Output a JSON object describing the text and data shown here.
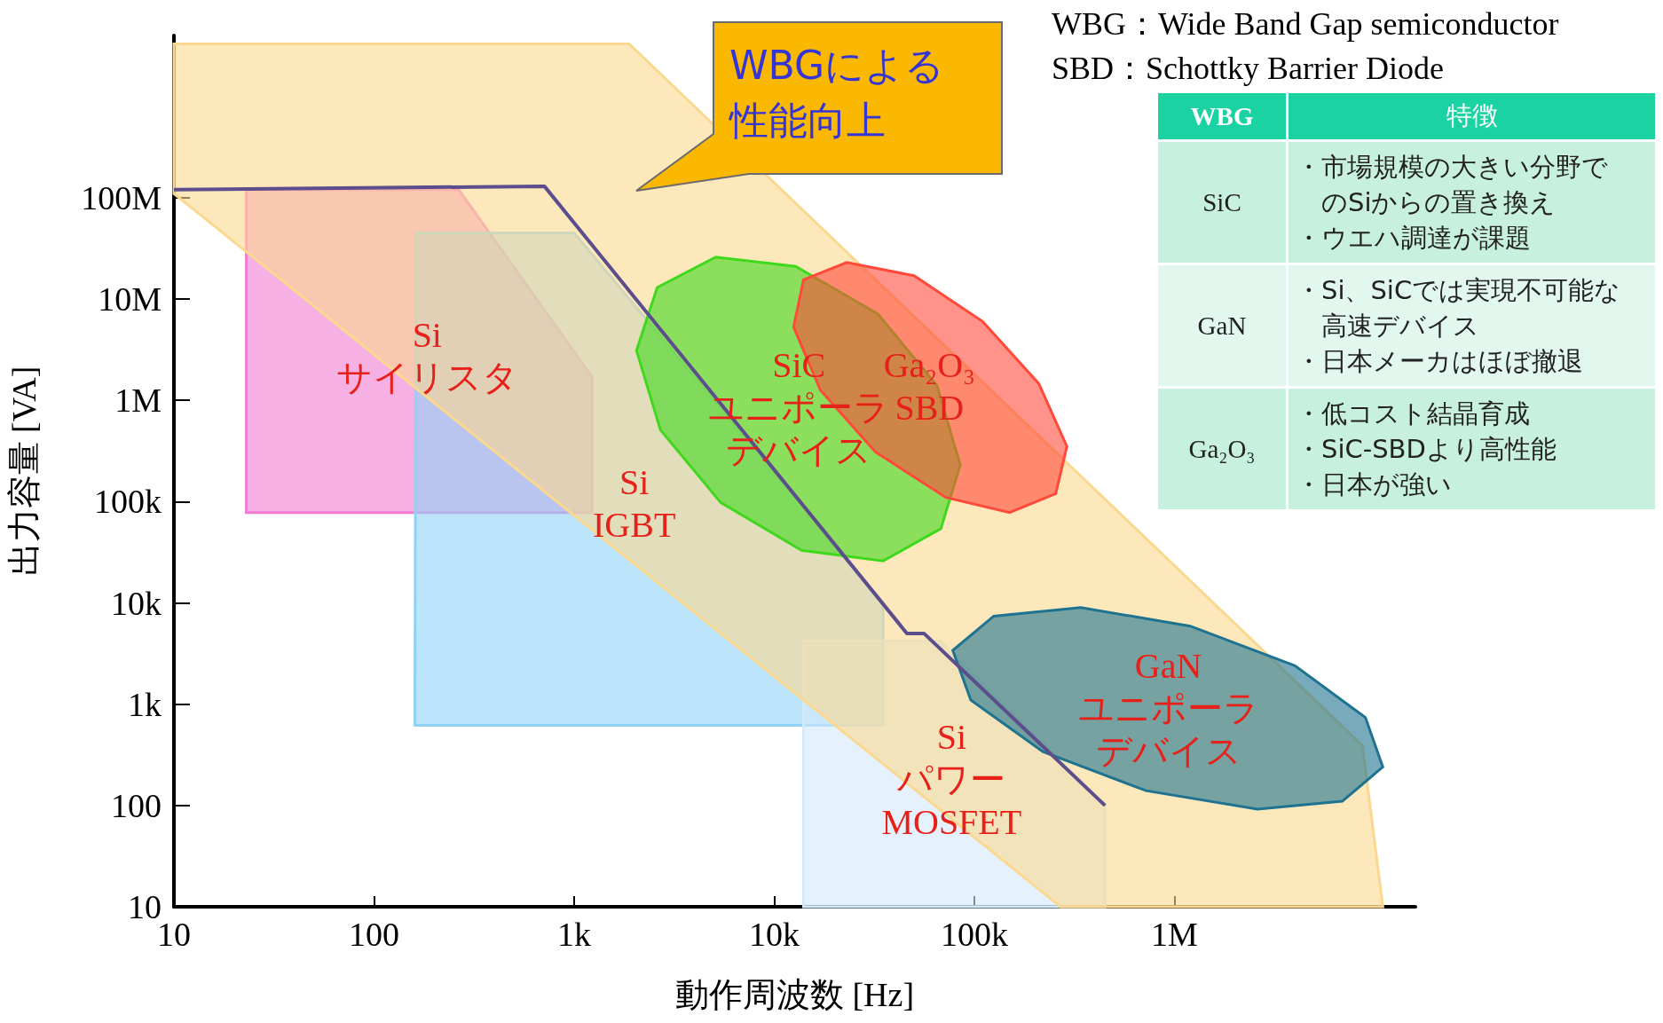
{
  "chart_data": [
    {
      "type": "area",
      "xlabel": "動作周波数 [Hz]",
      "ylabel": "出力容量 [VA]",
      "log": "xy",
      "xlim": [
        10,
        16000000
      ],
      "ylim": [
        10,
        4000000000
      ],
      "xticks": [
        10,
        100,
        {
          "value": 1000,
          "label": "1k"
        },
        {
          "value": 10000,
          "label": "10k"
        },
        {
          "value": 100000,
          "label": "100k"
        },
        {
          "value": 1000000,
          "label": "1M"
        }
      ],
      "yticks": [
        10,
        100,
        {
          "value": 1000,
          "label": "1k"
        },
        {
          "value": 10000,
          "label": "10k"
        },
        {
          "value": 100000,
          "label": "100k"
        },
        {
          "value": 1000000,
          "label": "1M"
        },
        {
          "value": 10000000,
          "label": "10M"
        },
        {
          "value": 100000000,
          "label": "100M"
        }
      ],
      "annotations": [
        "WBG：Wide Band Gap semiconductor",
        "SBD：Schottky Barrier Diode",
        "WBGによる性能向上"
      ],
      "series": [
        {
          "name": "Si\nサイリスタ",
          "color": "#f27cd2",
          "x": [
            23,
            265,
            1230,
            1230,
            23
          ],
          "values": [
            120000000,
            120000000,
            1700000,
            78000,
            78000
          ]
        },
        {
          "name": "Si\nIGBT",
          "color": "#8fd2f7",
          "x": [
            162,
            1000,
            35000,
            35000,
            160
          ],
          "values": [
            45000000,
            45000000,
            10000,
            620,
            620
          ]
        },
        {
          "name": "Si\nパワー\nMOSFET",
          "color": "#d4eafb",
          "x": [
            14000,
            68000,
            450000,
            450000,
            14000
          ],
          "values": [
            4200,
            4200,
            100,
            10,
            10
          ]
        },
        {
          "color": "#fbd88f",
          "x": [
            10,
            1884,
            8700000,
            11000000,
            270000,
            10
          ],
          "values": [
            3300000000,
            3300000000,
            390,
            10,
            10,
            110000000
          ]
        },
        {
          "type": "line",
          "color": "#5c4d8c",
          "x": [
            10,
            710,
            46000,
            56000,
            450000
          ],
          "values": [
            120000000,
            130000000,
            5000,
            5000,
            100
          ]
        },
        {
          "name": "SiC\nユニポーラデバイス",
          "color": "#3fd81c",
          "x": [
            68000,
            35000,
            13700,
            5400,
            2700,
            2050,
            2600,
            5100,
            12800,
            33000,
            65000,
            85000
          ],
          "values": [
            54000,
            26000,
            33000,
            98000,
            510000,
            3100000,
            13000000,
            26000000,
            21000000,
            7100000,
            1400000,
            230000
          ]
        },
        {
          "name": "Ga₂O₃\nSBD",
          "color": "#ff4a3a",
          "x": [
            255000,
            150000,
            72000,
            32000,
            17000,
            12500,
            14000,
            23000,
            50000,
            110000,
            210000,
            290000
          ],
          "values": [
            120000,
            78000,
            110000,
            310000,
            1260000,
            5300000,
            15500000,
            23000000,
            17000000,
            6000000,
            1460000,
            350000
          ]
        },
        {
          "name": "GaN\nユニポーラデバイス",
          "color": "#1d7390",
          "x": [
            11000000,
            6900000,
            2600000,
            720000,
            220000,
            96000,
            78000,
            125000,
            340000,
            1200000,
            4000000,
            9000000
          ],
          "values": [
            240,
            110,
            92,
            140,
            340,
            1100,
            3400,
            7400,
            9000,
            5900,
            2400,
            740
          ]
        }
      ]
    },
    {
      "type": "other",
      "categories": [
        "WBG",
        "特徴"
      ],
      "y_categories": [
        "SiC",
        "GaN",
        "Ga₂O₃"
      ],
      "cell_labels": [
        [
          "・市場規模の大きい分野でのSiからの置き換え",
          "・ウエハ調達が課題"
        ],
        [
          "・Si、SiCでは実現不可能な高速デバイス",
          "・日本メーカはほぼ撤退"
        ],
        [
          "・低コスト結晶育成",
          "・SiC-SBDより高性能",
          "・日本が強い"
        ]
      ]
    }
  ]
}
